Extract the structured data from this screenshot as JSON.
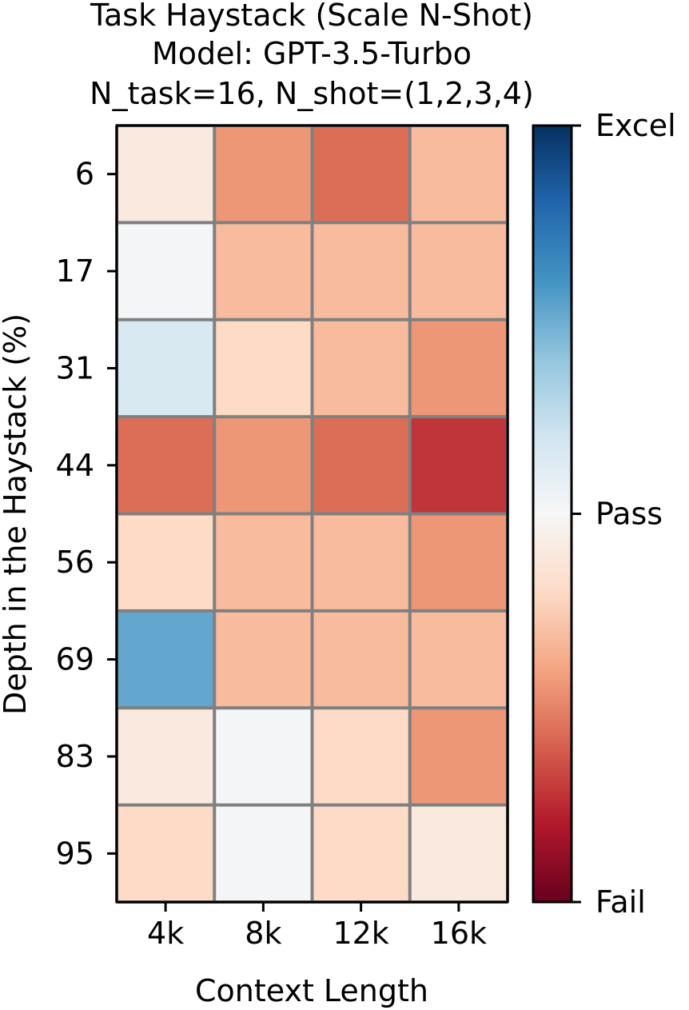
{
  "chart_data": {
    "type": "heatmap",
    "title_lines": [
      "Task Haystack (Scale N-Shot)",
      "Model: GPT-3.5-Turbo",
      "N_task=16, N_shot=(1,2,3,4)"
    ],
    "xlabel": "Context Length",
    "ylabel": "Depth in the Haystack (%)",
    "x_categories": [
      "4k",
      "8k",
      "12k",
      "16k"
    ],
    "y_categories": [
      "6",
      "17",
      "31",
      "44",
      "56",
      "69",
      "83",
      "95"
    ],
    "values": [
      [
        0.45,
        0.28,
        0.22,
        0.34
      ],
      [
        0.51,
        0.34,
        0.34,
        0.34
      ],
      [
        0.58,
        0.4,
        0.34,
        0.28
      ],
      [
        0.22,
        0.28,
        0.22,
        0.14
      ],
      [
        0.4,
        0.34,
        0.34,
        0.28
      ],
      [
        0.76,
        0.34,
        0.34,
        0.34
      ],
      [
        0.45,
        0.51,
        0.4,
        0.28
      ],
      [
        0.4,
        0.51,
        0.4,
        0.45
      ]
    ],
    "value_range": [
      0,
      1
    ],
    "colormap": "RdBu",
    "cell_border_color": "#808080",
    "colorbar": {
      "ticks": [
        {
          "value": 1.0,
          "label": "Excel"
        },
        {
          "value": 0.5,
          "label": "Pass"
        },
        {
          "value": 0.0,
          "label": "Fail"
        }
      ],
      "colors_low_to_high": [
        "#67001f",
        "#b2182b",
        "#d6604d",
        "#f4a582",
        "#fddbc7",
        "#f7f7f7",
        "#d1e5f0",
        "#92c5de",
        "#4393c3",
        "#2166ac",
        "#053061"
      ]
    }
  }
}
